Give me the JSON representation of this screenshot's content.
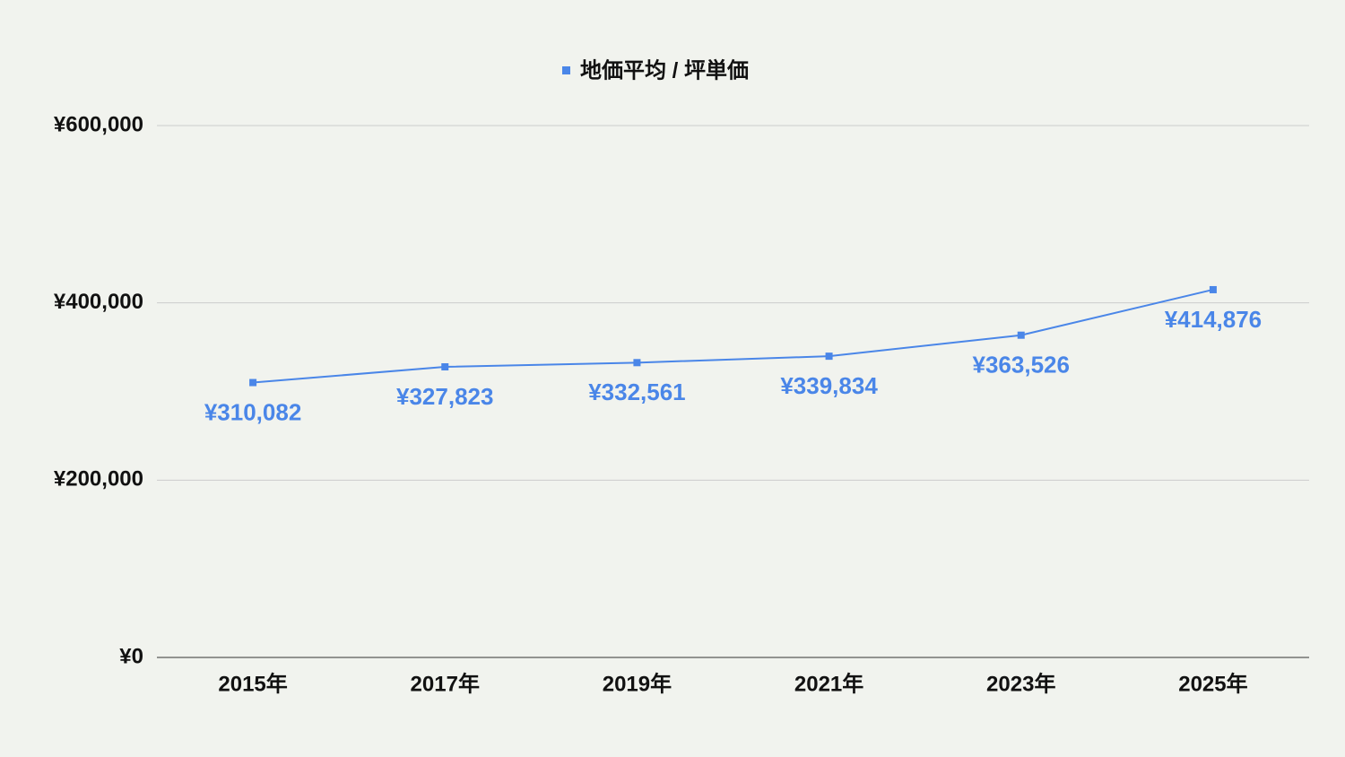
{
  "chart_data": {
    "type": "line",
    "categories": [
      "2015年",
      "2017年",
      "2019年",
      "2021年",
      "2023年",
      "2025年"
    ],
    "series": [
      {
        "name": "地価平均 / 坪単価",
        "color": "#4a86e8",
        "values": [
          310082,
          327823,
          332561,
          339834,
          363526,
          414876
        ],
        "value_labels": [
          "¥310,082",
          "¥327,823",
          "¥332,561",
          "¥339,834",
          "¥363,526",
          "¥414,876"
        ]
      }
    ],
    "ylim": [
      0,
      600000
    ],
    "yticks": [
      {
        "value": 0,
        "label": "¥0"
      },
      {
        "value": 200000,
        "label": "¥200,000"
      },
      {
        "value": 400000,
        "label": "¥400,000"
      },
      {
        "value": 600000,
        "label": "¥600,000"
      }
    ],
    "grid": true,
    "legend": "top"
  }
}
